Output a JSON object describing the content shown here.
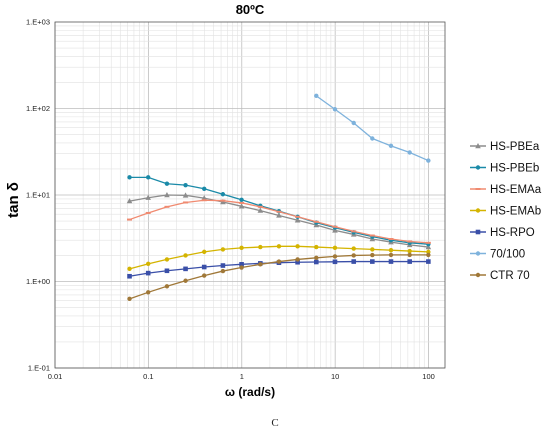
{
  "figure": {
    "caption": "C"
  },
  "chart_data": {
    "type": "line",
    "title": "80ºC",
    "xlabel": "ω (rad/s)",
    "ylabel": "tan δ",
    "xscale": "log",
    "yscale": "log",
    "xlim": [
      0.01,
      150
    ],
    "ylim": [
      0.1,
      1000
    ],
    "xticks": [
      0.01,
      0.1,
      1,
      10,
      100
    ],
    "xtick_labels": [
      "0.01",
      "0.1",
      "1",
      "10",
      "100"
    ],
    "yticks": [
      0.1,
      1,
      10,
      100,
      1000
    ],
    "ytick_labels": [
      "1.E-01",
      "1.E+00",
      "1.E+01",
      "1.E+02",
      "1.E+03"
    ],
    "grid": true,
    "legend_position": "right",
    "series": [
      {
        "name": "HS-PBEa",
        "color": "#8c8c8c",
        "marker": "triangle",
        "x": [
          0.0628,
          0.0995,
          0.158,
          0.25,
          0.396,
          0.628,
          0.995,
          1.58,
          2.5,
          3.96,
          6.28,
          9.95,
          15.8,
          25,
          39.6,
          62.8,
          99.5
        ],
        "y": [
          8.5,
          9.3,
          10.0,
          9.9,
          9.2,
          8.3,
          7.4,
          6.6,
          5.8,
          5.1,
          4.5,
          3.9,
          3.5,
          3.1,
          2.85,
          2.65,
          2.5
        ]
      },
      {
        "name": "HS-PBEb",
        "color": "#1a8aa8",
        "marker": "circle",
        "x": [
          0.0628,
          0.0995,
          0.158,
          0.25,
          0.396,
          0.628,
          0.995,
          1.58,
          2.5,
          3.96,
          6.28,
          9.95,
          15.8,
          25,
          39.6,
          62.8,
          99.5
        ],
        "y": [
          16.0,
          16.0,
          13.5,
          13.0,
          11.8,
          10.2,
          8.8,
          7.5,
          6.5,
          5.6,
          4.8,
          4.2,
          3.7,
          3.3,
          3.0,
          2.8,
          2.7
        ]
      },
      {
        "name": "HS-EMAa",
        "color": "#f08a70",
        "marker": "dash",
        "x": [
          0.0628,
          0.0995,
          0.158,
          0.25,
          0.396,
          0.628,
          0.995,
          1.58,
          2.5,
          3.96,
          6.28,
          9.95,
          15.8,
          25,
          39.6,
          62.8,
          99.5
        ],
        "y": [
          5.2,
          6.2,
          7.3,
          8.2,
          8.7,
          8.6,
          8.1,
          7.3,
          6.4,
          5.6,
          4.9,
          4.3,
          3.8,
          3.4,
          3.1,
          2.9,
          2.8
        ]
      },
      {
        "name": "HS-EMAb",
        "color": "#d4b400",
        "marker": "circle",
        "x": [
          0.0628,
          0.0995,
          0.158,
          0.25,
          0.396,
          0.628,
          0.995,
          1.58,
          2.5,
          3.96,
          6.28,
          9.95,
          15.8,
          25,
          39.6,
          62.8,
          99.5
        ],
        "y": [
          1.4,
          1.6,
          1.8,
          2.0,
          2.2,
          2.35,
          2.45,
          2.5,
          2.55,
          2.55,
          2.5,
          2.45,
          2.4,
          2.35,
          2.3,
          2.25,
          2.2
        ]
      },
      {
        "name": "HS-RPO",
        "color": "#3a4fa8",
        "marker": "square",
        "x": [
          0.0628,
          0.0995,
          0.158,
          0.25,
          0.396,
          0.628,
          0.995,
          1.58,
          2.5,
          3.96,
          6.28,
          9.95,
          15.8,
          25,
          39.6,
          62.8,
          99.5
        ],
        "y": [
          1.15,
          1.25,
          1.33,
          1.4,
          1.47,
          1.53,
          1.58,
          1.62,
          1.65,
          1.67,
          1.68,
          1.69,
          1.7,
          1.7,
          1.7,
          1.7,
          1.7
        ]
      },
      {
        "name": "70/100",
        "color": "#7eb2dc",
        "marker": "circle",
        "x": [
          6.28,
          9.95,
          15.8,
          25,
          39.6,
          62.8,
          99.5
        ],
        "y": [
          140,
          98,
          68,
          45,
          37,
          31,
          25
        ]
      },
      {
        "name": "CTR 70",
        "color": "#a07838",
        "marker": "circle",
        "x": [
          0.0628,
          0.0995,
          0.158,
          0.25,
          0.396,
          0.628,
          0.995,
          1.58,
          2.5,
          3.96,
          6.28,
          9.95,
          15.8,
          25,
          39.6,
          62.8,
          99.5
        ],
        "y": [
          0.63,
          0.75,
          0.88,
          1.02,
          1.17,
          1.32,
          1.45,
          1.58,
          1.7,
          1.8,
          1.88,
          1.95,
          2.0,
          2.02,
          2.03,
          2.03,
          2.03
        ]
      }
    ]
  }
}
